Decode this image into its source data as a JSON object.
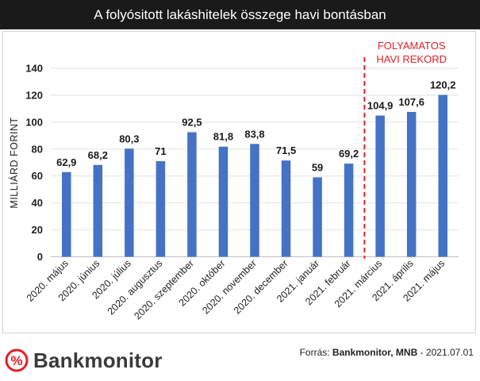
{
  "header": {
    "title": "A folyósitott lakáshitelek összege havi bontásban"
  },
  "chart_data": {
    "type": "bar",
    "title": "A folyósitott lakáshitelek összege havi bontásban",
    "ylabel": "MILLIÁRD FORINT",
    "xlabel": "",
    "ylim": [
      0,
      140
    ],
    "yticks": [
      0,
      20,
      40,
      60,
      80,
      100,
      120,
      140
    ],
    "grid": true,
    "categories": [
      "2020. május",
      "2020. június",
      "2020. július",
      "2020. augusztus",
      "2020. szeptember",
      "2020. október",
      "2020. november",
      "2020. december",
      "2021. január",
      "2021. február",
      "2021. március",
      "2021. április",
      "2021. május"
    ],
    "values": [
      62.9,
      68.2,
      80.3,
      71,
      92.5,
      81.8,
      83.8,
      71.5,
      59,
      69.2,
      104.9,
      107.6,
      120.2
    ],
    "value_labels": [
      "62,9",
      "68,2",
      "80,3",
      "71",
      "92,5",
      "81,8",
      "83,8",
      "71,5",
      "59",
      "69,2",
      "104,9",
      "107,6",
      "120,2"
    ],
    "bar_color": "#4472c4",
    "annotation": {
      "lines": [
        "FOLYAMATOS",
        "HAVI REKORD"
      ],
      "color": "#e0202a",
      "after_category": "2021. február"
    }
  },
  "footer": {
    "logo_text": "Bankmonitor",
    "source_prefix": "Forrás: ",
    "source_bold": "Bankmonitor, MNB",
    "source_suffix": " - 2021.07.01",
    "brand_color": "#e0202a"
  }
}
